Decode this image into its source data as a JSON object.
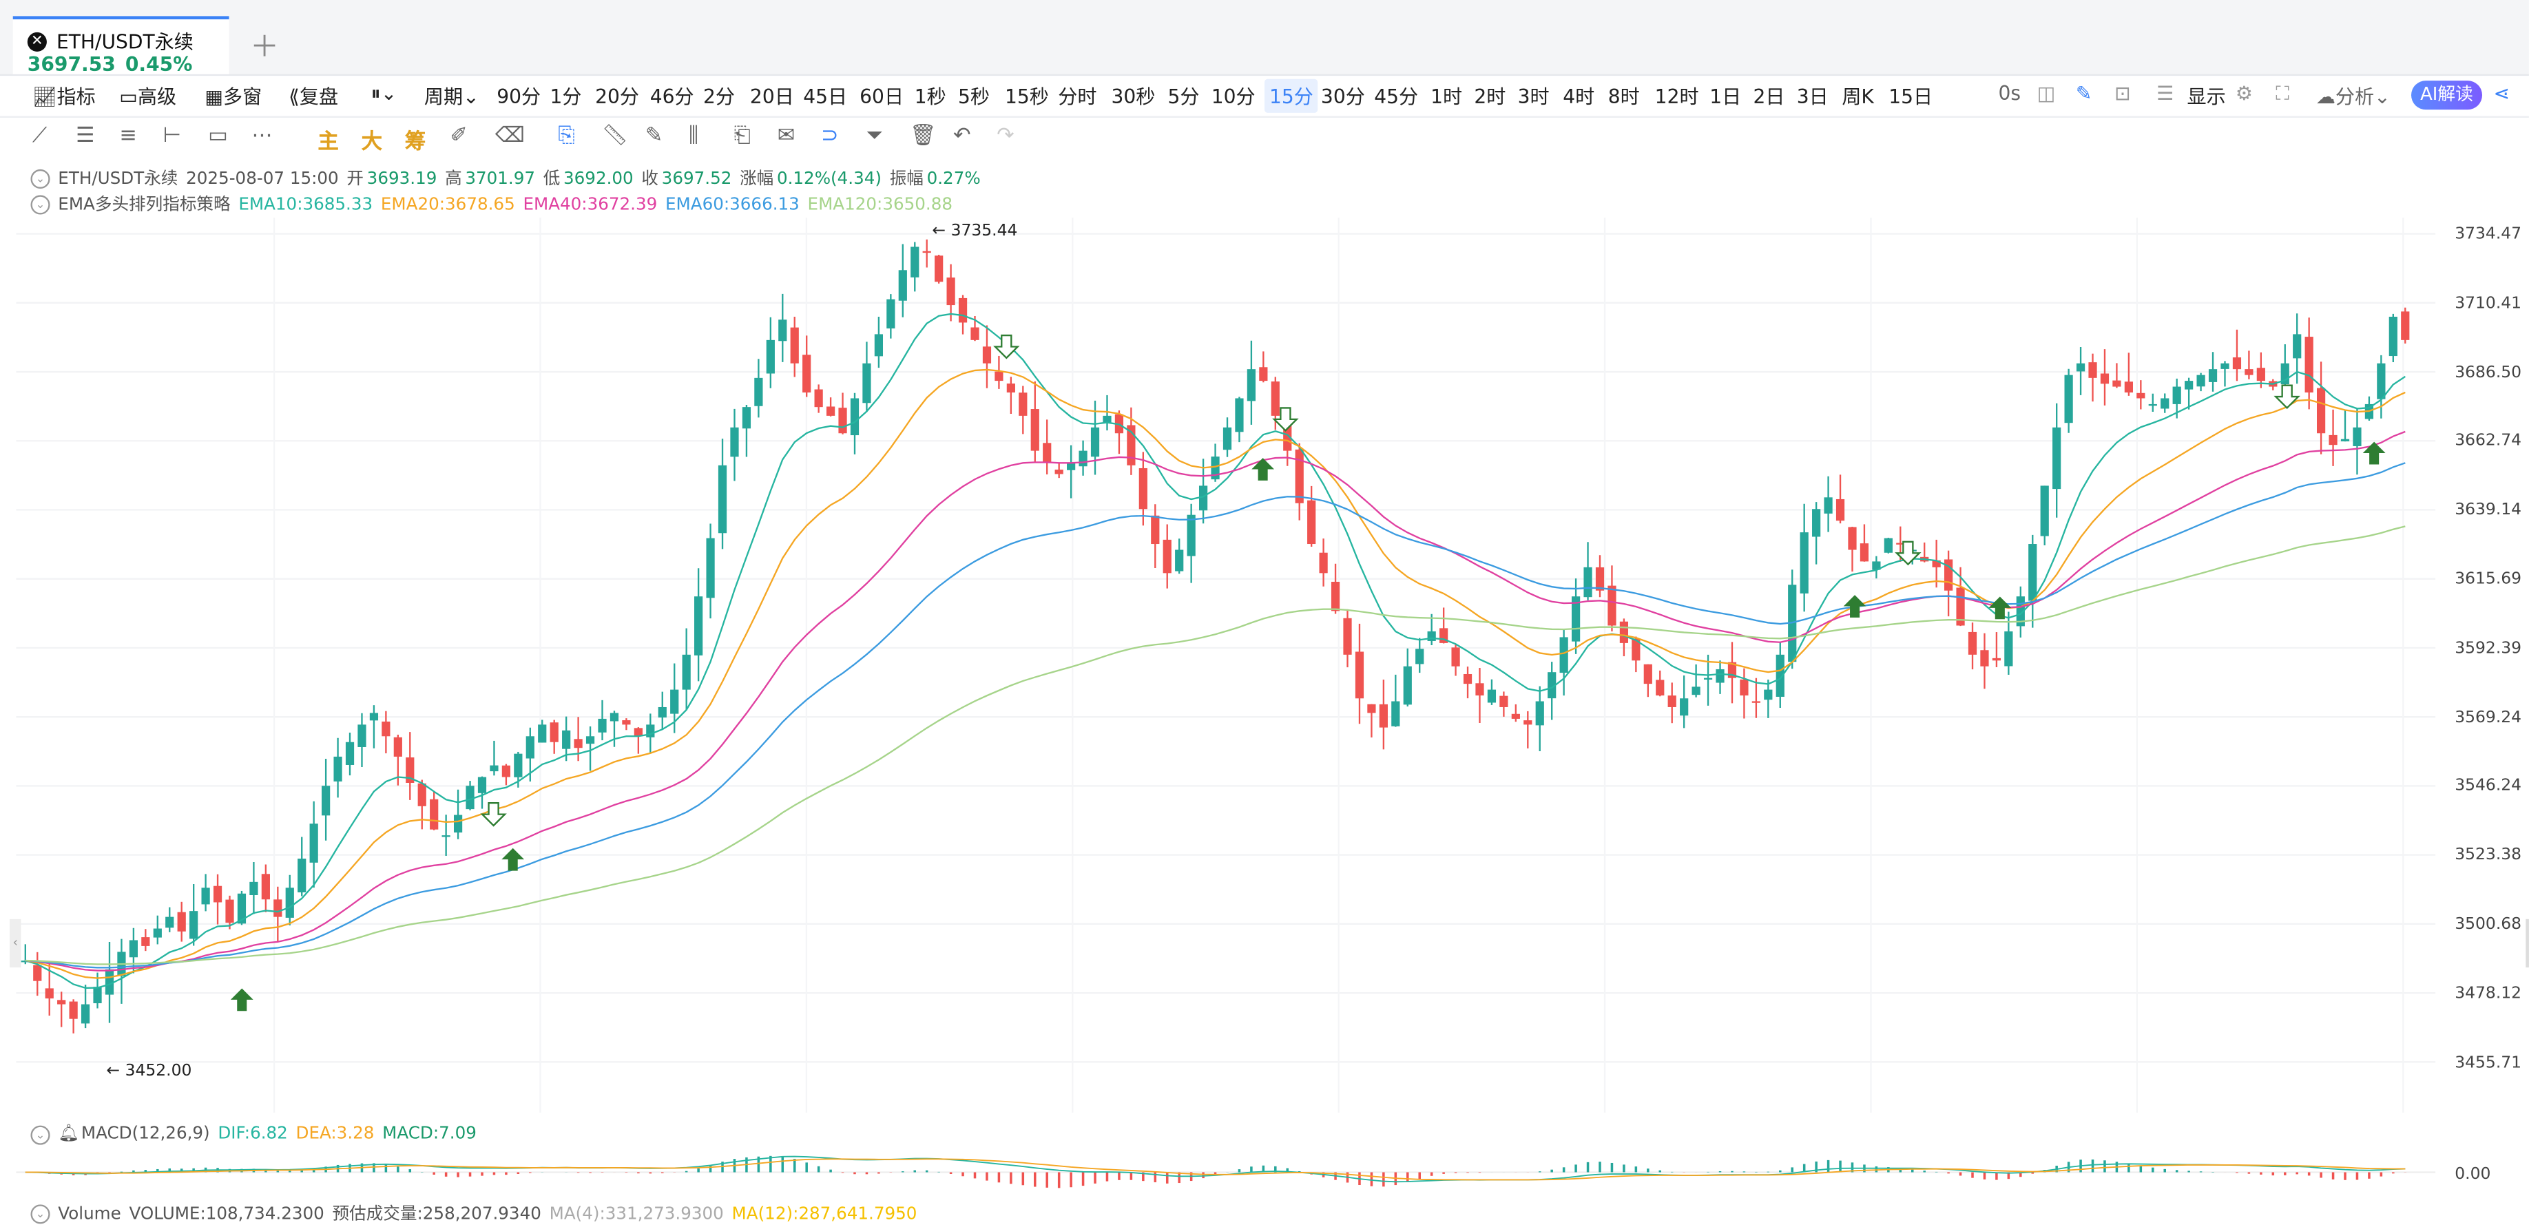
{
  "tab": {
    "symbol": "ETH/USDT永续",
    "price": "3697.53",
    "change": "0.45%"
  },
  "toolbar": {
    "left": [
      "指标",
      "高级",
      "多窗",
      "复盘",
      "周期"
    ],
    "periods": [
      "90分",
      "1分",
      "20分",
      "46分",
      "2分",
      "20日",
      "45日",
      "60日",
      "1秒",
      "5秒",
      "15秒",
      "分时",
      "30秒",
      "5分",
      "10分",
      "15分",
      "30分",
      "45分",
      "1时",
      "2时",
      "3时",
      "4时",
      "8时",
      "12时",
      "1日",
      "2日",
      "3日",
      "周K",
      "15日"
    ],
    "selected_period": "15分",
    "right": {
      "latency": "0s",
      "display": "显示",
      "analysis": "分析",
      "ai": "AI解读"
    }
  },
  "drawing_tools": {
    "main": "主",
    "big": "大",
    "chip": "筹"
  },
  "ohlc": {
    "symbol": "ETH/USDT永续",
    "datetime": "2025-08-07 15:00",
    "open_label": "开",
    "open": "3693.19",
    "high_label": "高",
    "high": "3701.97",
    "low_label": "低",
    "low": "3692.00",
    "close_label": "收",
    "close": "3697.52",
    "change_label": "涨幅",
    "change": "0.12%(4.34)",
    "amp_label": "振幅",
    "amp": "0.27%"
  },
  "strategy": {
    "name": "EMA多头排列指标策略",
    "ema10": "EMA10:3685.33",
    "ema20": "EMA20:3678.65",
    "ema40": "EMA40:3672.39",
    "ema60": "EMA60:3666.13",
    "ema120": "EMA120:3650.88"
  },
  "macd": {
    "name": "MACD(12,26,9)",
    "dif": "DIF:6.82",
    "dea": "DEA:3.28",
    "macd": "MACD:7.09",
    "zero": "0.00"
  },
  "volume": {
    "name": "Volume",
    "volume": "VOLUME:108,734.2300",
    "est": "预估成交量:258,207.9340",
    "ma4": "MA(4):331,273.9300",
    "ma12": "MA(12):287,641.7950"
  },
  "price_axis": [
    "3734.47",
    "3710.41",
    "3686.50",
    "3662.74",
    "3639.14",
    "3615.69",
    "3592.39",
    "3569.24",
    "3546.24",
    "3523.38",
    "3500.68",
    "3478.12",
    "3455.71"
  ],
  "markers": {
    "high": "3735.44",
    "low": "3452.00"
  },
  "colors": {
    "up": "#26a69a",
    "down": "#ef5350",
    "ema10": "#26b5a0",
    "ema20": "#f5a623",
    "ema40": "#e040a0",
    "ema60": "#3b9be0",
    "ema120": "#a6d48a",
    "accent": "#3b82f6"
  },
  "chart_data": {
    "type": "candlestick",
    "title": "ETH/USDT永续",
    "price_range": [
      3445,
      3740
    ],
    "closes_approx": [
      3485,
      3478,
      3472,
      3470,
      3465,
      3470,
      3476,
      3482,
      3488,
      3492,
      3490,
      3496,
      3500,
      3495,
      3502,
      3510,
      3505,
      3498,
      3508,
      3512,
      3506,
      3500,
      3510,
      3520,
      3532,
      3545,
      3555,
      3560,
      3566,
      3570,
      3562,
      3555,
      3546,
      3538,
      3530,
      3528,
      3535,
      3545,
      3548,
      3552,
      3548,
      3556,
      3562,
      3566,
      3560,
      3564,
      3558,
      3562,
      3568,
      3570,
      3566,
      3562,
      3566,
      3572,
      3578,
      3590,
      3610,
      3630,
      3655,
      3668,
      3675,
      3685,
      3698,
      3705,
      3690,
      3680,
      3675,
      3672,
      3666,
      3678,
      3690,
      3700,
      3712,
      3722,
      3730,
      3728,
      3718,
      3710,
      3704,
      3698,
      3690,
      3684,
      3680,
      3672,
      3660,
      3656,
      3652,
      3656,
      3660,
      3668,
      3672,
      3666,
      3655,
      3640,
      3628,
      3618,
      3626,
      3638,
      3648,
      3658,
      3668,
      3678,
      3688,
      3684,
      3672,
      3660,
      3642,
      3628,
      3618,
      3605,
      3590,
      3575,
      3570,
      3565,
      3574,
      3586,
      3592,
      3598,
      3594,
      3586,
      3580,
      3576,
      3578,
      3572,
      3568,
      3566,
      3574,
      3584,
      3596,
      3610,
      3620,
      3612,
      3600,
      3594,
      3588,
      3580,
      3576,
      3572,
      3575,
      3579,
      3582,
      3585,
      3582,
      3576,
      3574,
      3578,
      3590,
      3614,
      3632,
      3640,
      3644,
      3636,
      3626,
      3622,
      3622,
      3630,
      3628,
      3626,
      3622,
      3620,
      3612,
      3600,
      3590,
      3586,
      3588,
      3598,
      3610,
      3628,
      3648,
      3668,
      3686,
      3690,
      3685,
      3683,
      3682,
      3680,
      3678,
      3676,
      3678,
      3682,
      3684,
      3686,
      3688,
      3690,
      3688,
      3686,
      3684,
      3682,
      3690,
      3700,
      3680,
      3666,
      3662,
      3664,
      3668,
      3676,
      3690,
      3706,
      3698
    ]
  }
}
